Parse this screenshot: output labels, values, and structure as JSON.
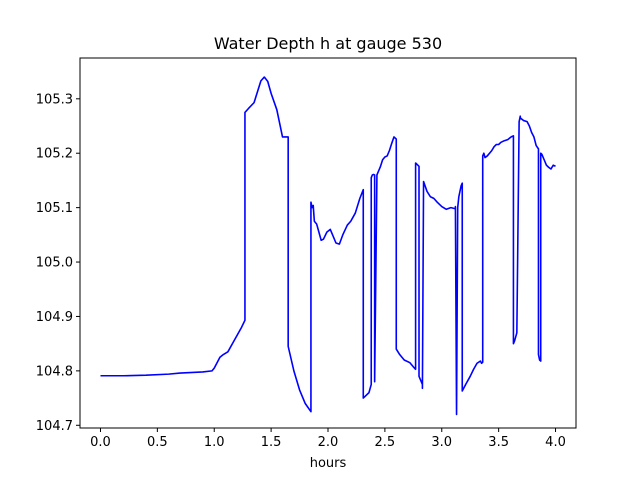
{
  "chart_data": {
    "type": "line",
    "title": "Water Depth h at gauge 530",
    "xlabel": "hours",
    "ylabel": "",
    "xlim": [
      -0.18,
      4.18
    ],
    "ylim": [
      104.695,
      105.375
    ],
    "xticks": [
      0.0,
      0.5,
      1.0,
      1.5,
      2.0,
      2.5,
      3.0,
      3.5,
      4.0
    ],
    "xtick_labels": [
      "0.0",
      "0.5",
      "1.0",
      "1.5",
      "2.0",
      "2.5",
      "3.0",
      "3.5",
      "4.0"
    ],
    "yticks": [
      104.7,
      104.8,
      104.9,
      105.0,
      105.1,
      105.2,
      105.3
    ],
    "ytick_labels": [
      "104.7",
      "104.8",
      "104.9",
      "105.0",
      "105.1",
      "105.2",
      "105.3"
    ],
    "grid": false,
    "series": [
      {
        "color": "#0000ff",
        "x": [
          0.0,
          0.2,
          0.4,
          0.6,
          0.7,
          0.9,
          0.98,
          1.0,
          1.05,
          1.08,
          1.12,
          1.16,
          1.2,
          1.24,
          1.27,
          1.27,
          1.3,
          1.35,
          1.38,
          1.41,
          1.44,
          1.47,
          1.5,
          1.55,
          1.6,
          1.65,
          1.65,
          1.7,
          1.75,
          1.8,
          1.85,
          1.85,
          1.86,
          1.87,
          1.88,
          1.9,
          1.92,
          1.94,
          1.96,
          1.99,
          2.02,
          2.04,
          2.07,
          2.1,
          2.13,
          2.17,
          2.2,
          2.24,
          2.28,
          2.31,
          2.31,
          2.33,
          2.36,
          2.38,
          2.38,
          2.39,
          2.4,
          2.41,
          2.41,
          2.43,
          2.46,
          2.48,
          2.5,
          2.52,
          2.54,
          2.56,
          2.58,
          2.6,
          2.6,
          2.63,
          2.67,
          2.72,
          2.76,
          2.77,
          2.77,
          2.79,
          2.8,
          2.8,
          2.83,
          2.83,
          2.84,
          2.87,
          2.9,
          2.93,
          2.96,
          3.0,
          3.04,
          3.08,
          3.12,
          3.12,
          3.13,
          3.14,
          3.14,
          3.15,
          3.17,
          3.18,
          3.18,
          3.21,
          3.25,
          3.28,
          3.31,
          3.34,
          3.35,
          3.36,
          3.36,
          3.37,
          3.38,
          3.4,
          3.42,
          3.44,
          3.46,
          3.48,
          3.5,
          3.52,
          3.55,
          3.58,
          3.61,
          3.63,
          3.63,
          3.64,
          3.66,
          3.68,
          3.69,
          3.69,
          3.72,
          3.75,
          3.77,
          3.79,
          3.81,
          3.83,
          3.85,
          3.85,
          3.86,
          3.87,
          3.87,
          3.88,
          3.9,
          3.92,
          3.94,
          3.96,
          3.98,
          4.0
        ],
        "y": [
          104.791,
          104.791,
          104.792,
          104.794,
          104.796,
          104.798,
          104.8,
          104.805,
          104.825,
          104.83,
          104.835,
          104.85,
          104.865,
          104.88,
          104.893,
          105.275,
          105.282,
          105.293,
          105.313,
          105.333,
          105.34,
          105.332,
          105.31,
          105.28,
          105.23,
          105.23,
          104.845,
          104.8,
          104.765,
          104.74,
          104.725,
          105.11,
          105.1,
          105.104,
          105.075,
          105.07,
          105.055,
          105.04,
          105.042,
          105.055,
          105.06,
          105.05,
          105.035,
          105.033,
          105.05,
          105.068,
          105.075,
          105.09,
          105.117,
          105.133,
          104.75,
          104.754,
          104.76,
          104.775,
          105.155,
          105.16,
          105.161,
          105.16,
          104.78,
          105.16,
          105.175,
          105.188,
          105.193,
          105.195,
          105.205,
          105.218,
          105.23,
          105.226,
          104.84,
          104.83,
          104.82,
          104.815,
          104.805,
          104.803,
          105.182,
          105.178,
          105.176,
          104.79,
          104.775,
          104.768,
          105.148,
          105.13,
          105.12,
          105.117,
          105.11,
          105.102,
          105.097,
          105.1,
          105.098,
          105.102,
          104.72,
          105.095,
          105.1,
          105.12,
          105.14,
          105.145,
          104.763,
          104.775,
          104.79,
          104.803,
          104.814,
          104.818,
          104.814,
          104.816,
          105.195,
          105.2,
          105.192,
          105.195,
          105.2,
          105.205,
          105.212,
          105.216,
          105.216,
          105.22,
          105.223,
          105.225,
          105.23,
          105.232,
          104.85,
          104.855,
          104.87,
          105.258,
          105.268,
          105.265,
          105.26,
          105.258,
          105.25,
          105.238,
          105.23,
          105.214,
          105.208,
          104.83,
          104.82,
          104.818,
          105.2,
          105.198,
          105.188,
          105.178,
          105.174,
          105.171,
          105.178,
          105.176
        ]
      }
    ]
  }
}
